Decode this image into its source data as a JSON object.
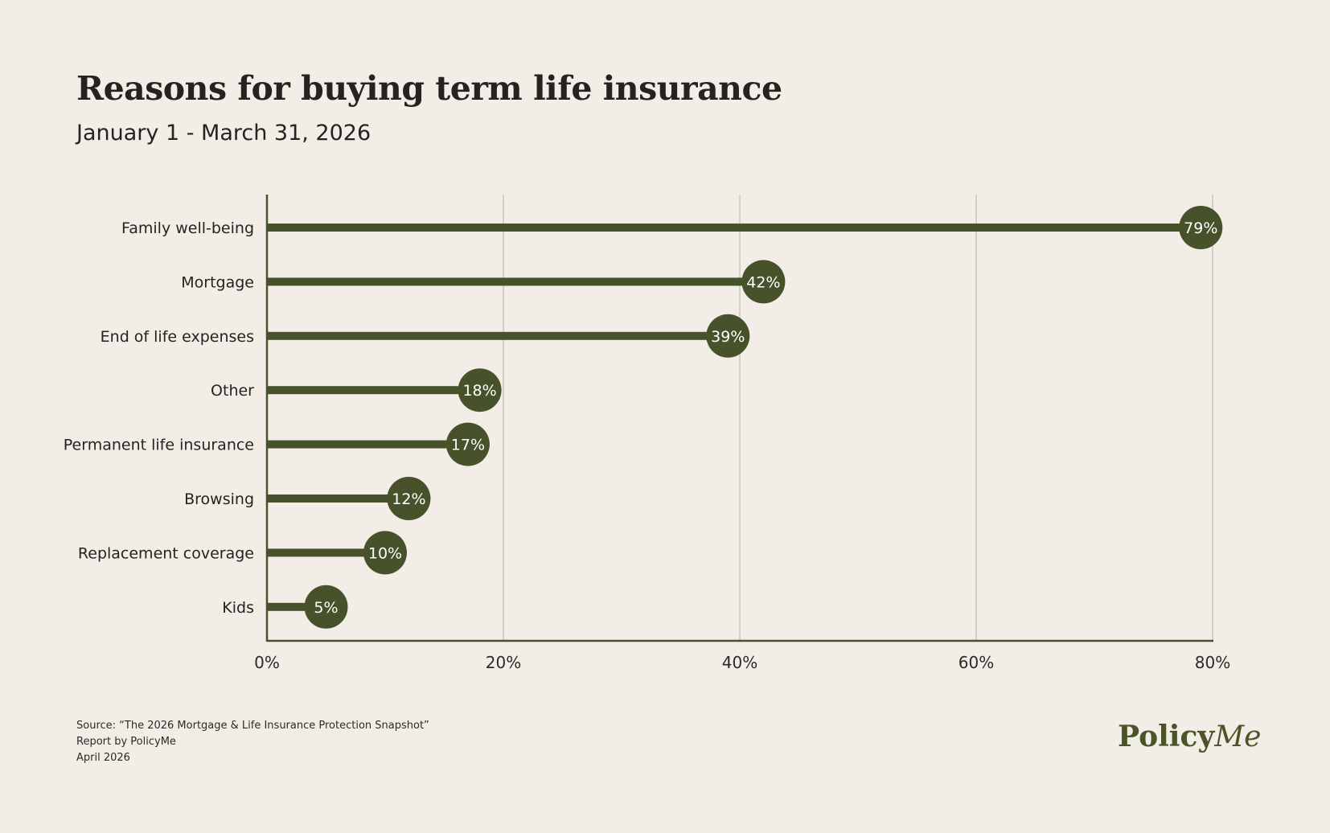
{
  "title": "Reasons for buying term life insurance",
  "subtitle": "January 1 - March 31, 2026",
  "footer": {
    "source": "Source: “The 2026 Mortgage & Life Insurance Protection Snapshot”",
    "report": "Report by PolicyMe",
    "date": "April 2026"
  },
  "brand": {
    "name_main": "Policy",
    "name_script": "Me"
  },
  "colors": {
    "bar": "#47512a",
    "grid": "#d3d0c9",
    "axis": "#47512a",
    "background": "#f2ede7",
    "label_text": "#ffffff"
  },
  "chart_data": {
    "type": "bar",
    "orientation": "horizontal",
    "title": "Reasons for buying term life insurance",
    "subtitle": "January 1 - March 31, 2026",
    "categories": [
      "Family well-being",
      "Mortgage",
      "End of life expenses",
      "Other",
      "Permanent life insurance",
      "Browsing",
      "Replacement coverage",
      "Kids"
    ],
    "values": [
      79,
      42,
      39,
      18,
      17,
      12,
      10,
      5
    ],
    "data_labels": [
      "79%",
      "42%",
      "39%",
      "18%",
      "17%",
      "12%",
      "10%",
      "5%"
    ],
    "xlim": [
      0,
      80
    ],
    "xticks": [
      0,
      20,
      40,
      60,
      80
    ],
    "xtick_labels": [
      "0%",
      "20%",
      "40%",
      "60%",
      "80%"
    ],
    "grid": true
  }
}
